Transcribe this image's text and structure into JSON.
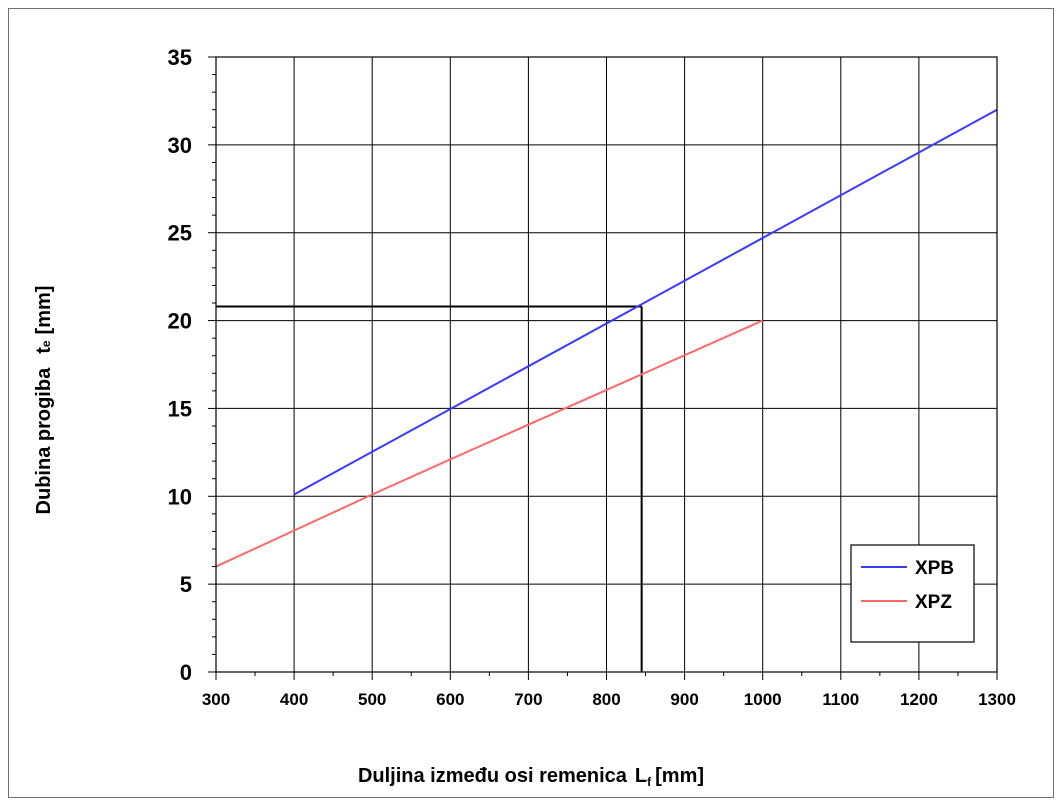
{
  "chart_data": {
    "type": "line",
    "title": "",
    "xlabel": "Duljina između osi remenica",
    "xlabel_symbol": "L",
    "xlabel_subscript": "f",
    "xlabel_unit": "[mm]",
    "ylabel": "Dubina progiba",
    "ylabel_symbol": "t",
    "ylabel_subscript": "e",
    "ylabel_unit": "[mm]",
    "xlim": [
      300,
      1300
    ],
    "ylim": [
      0,
      35
    ],
    "x_ticks": [
      300,
      400,
      500,
      600,
      700,
      800,
      900,
      1000,
      1100,
      1200,
      1300
    ],
    "y_ticks": [
      0,
      5,
      10,
      15,
      20,
      25,
      30,
      35
    ],
    "grid": true,
    "legend_position": "bottom-right",
    "series": [
      {
        "name": "XPB",
        "color": "#3a3aff",
        "points": [
          [
            400,
            10.1
          ],
          [
            1300,
            32
          ]
        ]
      },
      {
        "name": "XPZ",
        "color": "#ff6666",
        "points": [
          [
            300,
            6.0
          ],
          [
            500,
            10.1
          ],
          [
            600,
            12.1
          ],
          [
            1000,
            20.0
          ]
        ]
      }
    ],
    "reference_lines": {
      "color": "#000000",
      "x_value": 845,
      "y_value": 20.8
    }
  }
}
